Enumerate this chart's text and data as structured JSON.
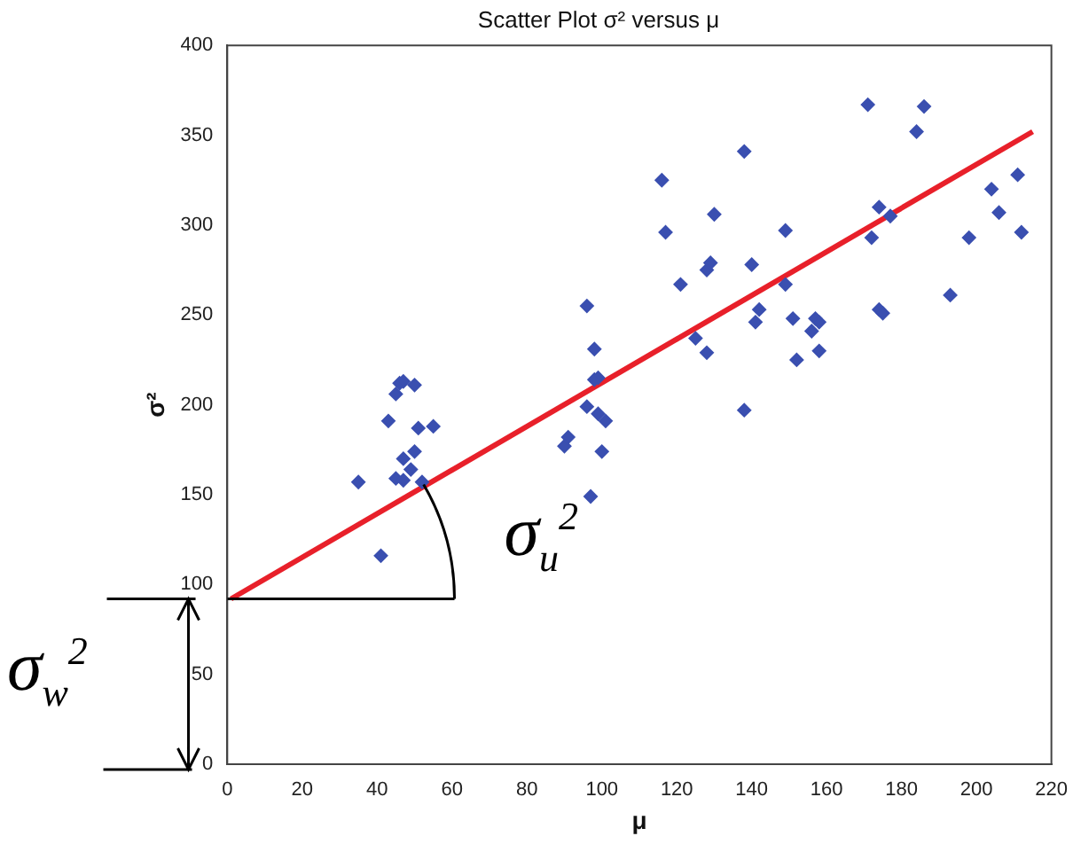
{
  "chart_data": {
    "type": "scatter",
    "title": "Scatter Plot σ² versus μ",
    "xlabel": "μ",
    "ylabel": "σ²",
    "xlim": [
      0,
      220
    ],
    "xticks": [
      0,
      20,
      40,
      60,
      80,
      100,
      120,
      140,
      160,
      180,
      200,
      220
    ],
    "ylim": [
      0,
      400
    ],
    "yticks": [
      0,
      50,
      100,
      150,
      200,
      250,
      300,
      350,
      400
    ],
    "grid": false,
    "legend": false,
    "annotations": [
      {
        "text": "σ$_{u}$$^{2}$",
        "x": 1,
        "y": 92
      },
      "σ$_{w}$$^{2}$"
    ],
    "series": [
      {
        "type": "scatter",
        "marker": "diamond",
        "color": "#3a4fb0",
        "x": [
          35,
          41,
          46,
          47,
          45,
          50,
          43,
          51,
          55,
          47,
          50,
          45,
          47,
          49,
          52,
          138,
          116,
          130,
          117,
          149,
          128,
          129,
          140,
          121,
          149,
          142,
          141,
          151,
          96,
          125,
          128,
          98,
          99,
          98,
          96,
          99,
          101,
          138,
          91,
          90,
          100,
          97,
          171,
          186,
          184,
          211,
          204,
          206,
          212,
          198,
          174,
          177,
          172,
          193,
          174,
          175,
          157,
          158,
          156,
          152,
          158
        ],
        "values": [
          157,
          116,
          212,
          213,
          206,
          211,
          191,
          187,
          188,
          170,
          174,
          159,
          158,
          164,
          157,
          341,
          325,
          306,
          296,
          297,
          275,
          279,
          278,
          267,
          267,
          253,
          246,
          248,
          255,
          237,
          229,
          231,
          215,
          214,
          199,
          195,
          191,
          197,
          182,
          177,
          174,
          149,
          367,
          366,
          352,
          328,
          320,
          307,
          296,
          293,
          310,
          305,
          293,
          261,
          253,
          251,
          248,
          246,
          241,
          225,
          230
        ]
      },
      {
        "type": "line",
        "marker": "none",
        "color": "#e8202a",
        "x": [
          1,
          215
        ],
        "values": [
          92,
          352
        ]
      }
    ]
  }
}
